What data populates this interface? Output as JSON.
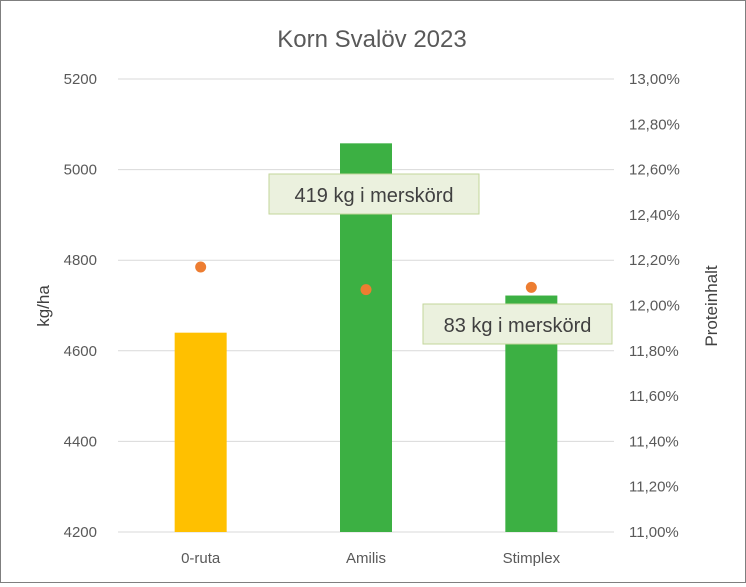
{
  "chart_data": {
    "type": "bar",
    "title": "Korn Svalöv 2023",
    "categories": [
      "0-ruta",
      "Amilis",
      "Stimplex"
    ],
    "series": [
      {
        "values": [
          4640,
          5058,
          4722
        ],
        "colors": [
          "#FFC000",
          "#3CB043",
          "#3CB043"
        ]
      },
      {
        "type": "scatter",
        "axis": "right",
        "values": [
          12.17,
          12.07,
          12.08
        ],
        "color": "#ED7D31"
      }
    ],
    "ylabel": "kg/ha",
    "ylim": [
      4200,
      5200
    ],
    "yticks": [
      "4200",
      "4400",
      "4600",
      "4800",
      "5000",
      "5200"
    ],
    "y2label": "Proteinhalt",
    "y2lim": [
      11.0,
      13.0
    ],
    "y2ticks": [
      "11,00%",
      "11,20%",
      "11,40%",
      "11,60%",
      "11,80%",
      "12,00%",
      "12,20%",
      "12,40%",
      "12,60%",
      "12,80%",
      "13,00%"
    ],
    "annotations": [
      {
        "text": "419 kg i merskörd",
        "category": "Amilis"
      },
      {
        "text": "83 kg i merskörd",
        "category": "Stimplex"
      }
    ],
    "grid": true,
    "gridcolor": "#D9D9D9",
    "annotation_bg": "#EBF1DE",
    "annotation_border": "#C3D69B"
  }
}
